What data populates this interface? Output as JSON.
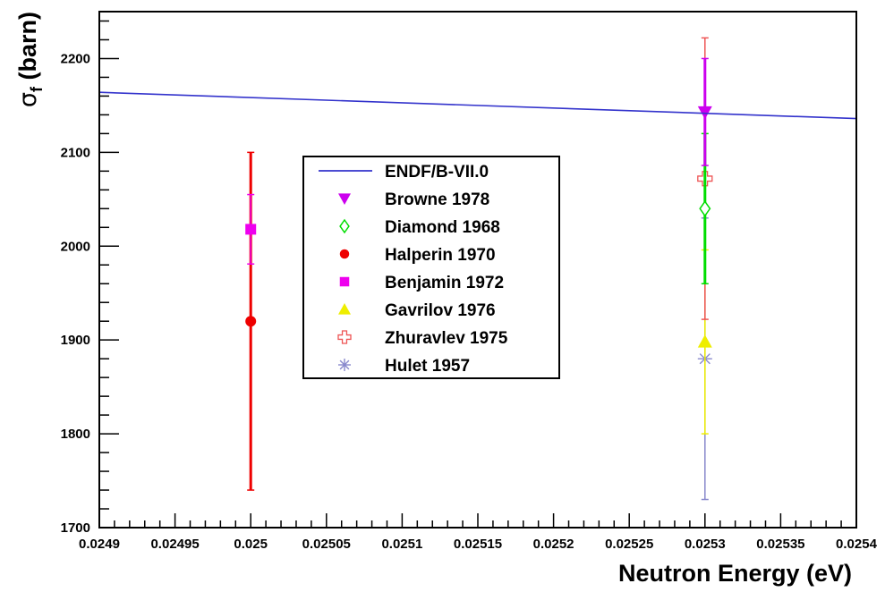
{
  "chart_data": {
    "type": "scatter",
    "xlabel": "Neutron Energy (eV)",
    "ylabel": {
      "sigma": "σ",
      "sub": "f",
      "rest": " (barn)"
    },
    "xlim": [
      0.0249,
      0.0254
    ],
    "ylim": [
      1700,
      2250
    ],
    "x_ticks": [
      0.0249,
      0.02495,
      0.025,
      0.02505,
      0.0251,
      0.02515,
      0.0252,
      0.02525,
      0.0253,
      0.02535,
      0.0254
    ],
    "x_tick_labels": [
      "0.0249",
      "0.02495",
      "0.025",
      "0.02505",
      "0.0251",
      "0.02515",
      "0.0252",
      "0.02525",
      "0.0253",
      "0.02535",
      "0.0254"
    ],
    "y_ticks": [
      1700,
      1800,
      1900,
      2000,
      2100,
      2200
    ],
    "y_tick_labels": [
      "1700",
      "1800",
      "1900",
      "2000",
      "2100",
      "2200"
    ],
    "grid": false,
    "legend_position": "upper-center",
    "series": [
      {
        "name": "ENDF/B-VII.0",
        "kind": "line",
        "color": "#3333cc",
        "x": [
          0.0249,
          0.0254
        ],
        "y": [
          2164,
          2136
        ]
      },
      {
        "name": "Browne 1978",
        "kind": "point",
        "marker": "triangle-down",
        "color": "#cc00ee",
        "points": [
          {
            "x": 0.0253,
            "y": 2143,
            "err": 57
          }
        ]
      },
      {
        "name": "Diamond 1968",
        "kind": "point",
        "marker": "diamond-open",
        "color": "#00dd00",
        "points": [
          {
            "x": 0.0253,
            "y": 2040,
            "err": 80
          }
        ]
      },
      {
        "name": "Halperin 1970",
        "kind": "point",
        "marker": "circle",
        "color": "#ee0000",
        "points": [
          {
            "x": 0.025,
            "y": 1920,
            "err": 180
          }
        ]
      },
      {
        "name": "Benjamin 1972",
        "kind": "point",
        "marker": "square",
        "color": "#ee00ee",
        "points": [
          {
            "x": 0.025,
            "y": 2018,
            "err": 37
          }
        ]
      },
      {
        "name": "Gavrilov 1976",
        "kind": "point",
        "marker": "triangle-up",
        "color": "#eeee00",
        "points": [
          {
            "x": 0.0253,
            "y": 1898,
            "err": 98
          }
        ]
      },
      {
        "name": "Zhuravlev 1975",
        "kind": "point",
        "marker": "cross-open",
        "color": "#ee5555",
        "points": [
          {
            "x": 0.0253,
            "y": 2072,
            "err": 150
          }
        ]
      },
      {
        "name": "Hulet 1957",
        "kind": "point",
        "marker": "star",
        "color": "#8888cc",
        "points": [
          {
            "x": 0.0253,
            "y": 1880,
            "err": 150
          }
        ]
      }
    ]
  }
}
